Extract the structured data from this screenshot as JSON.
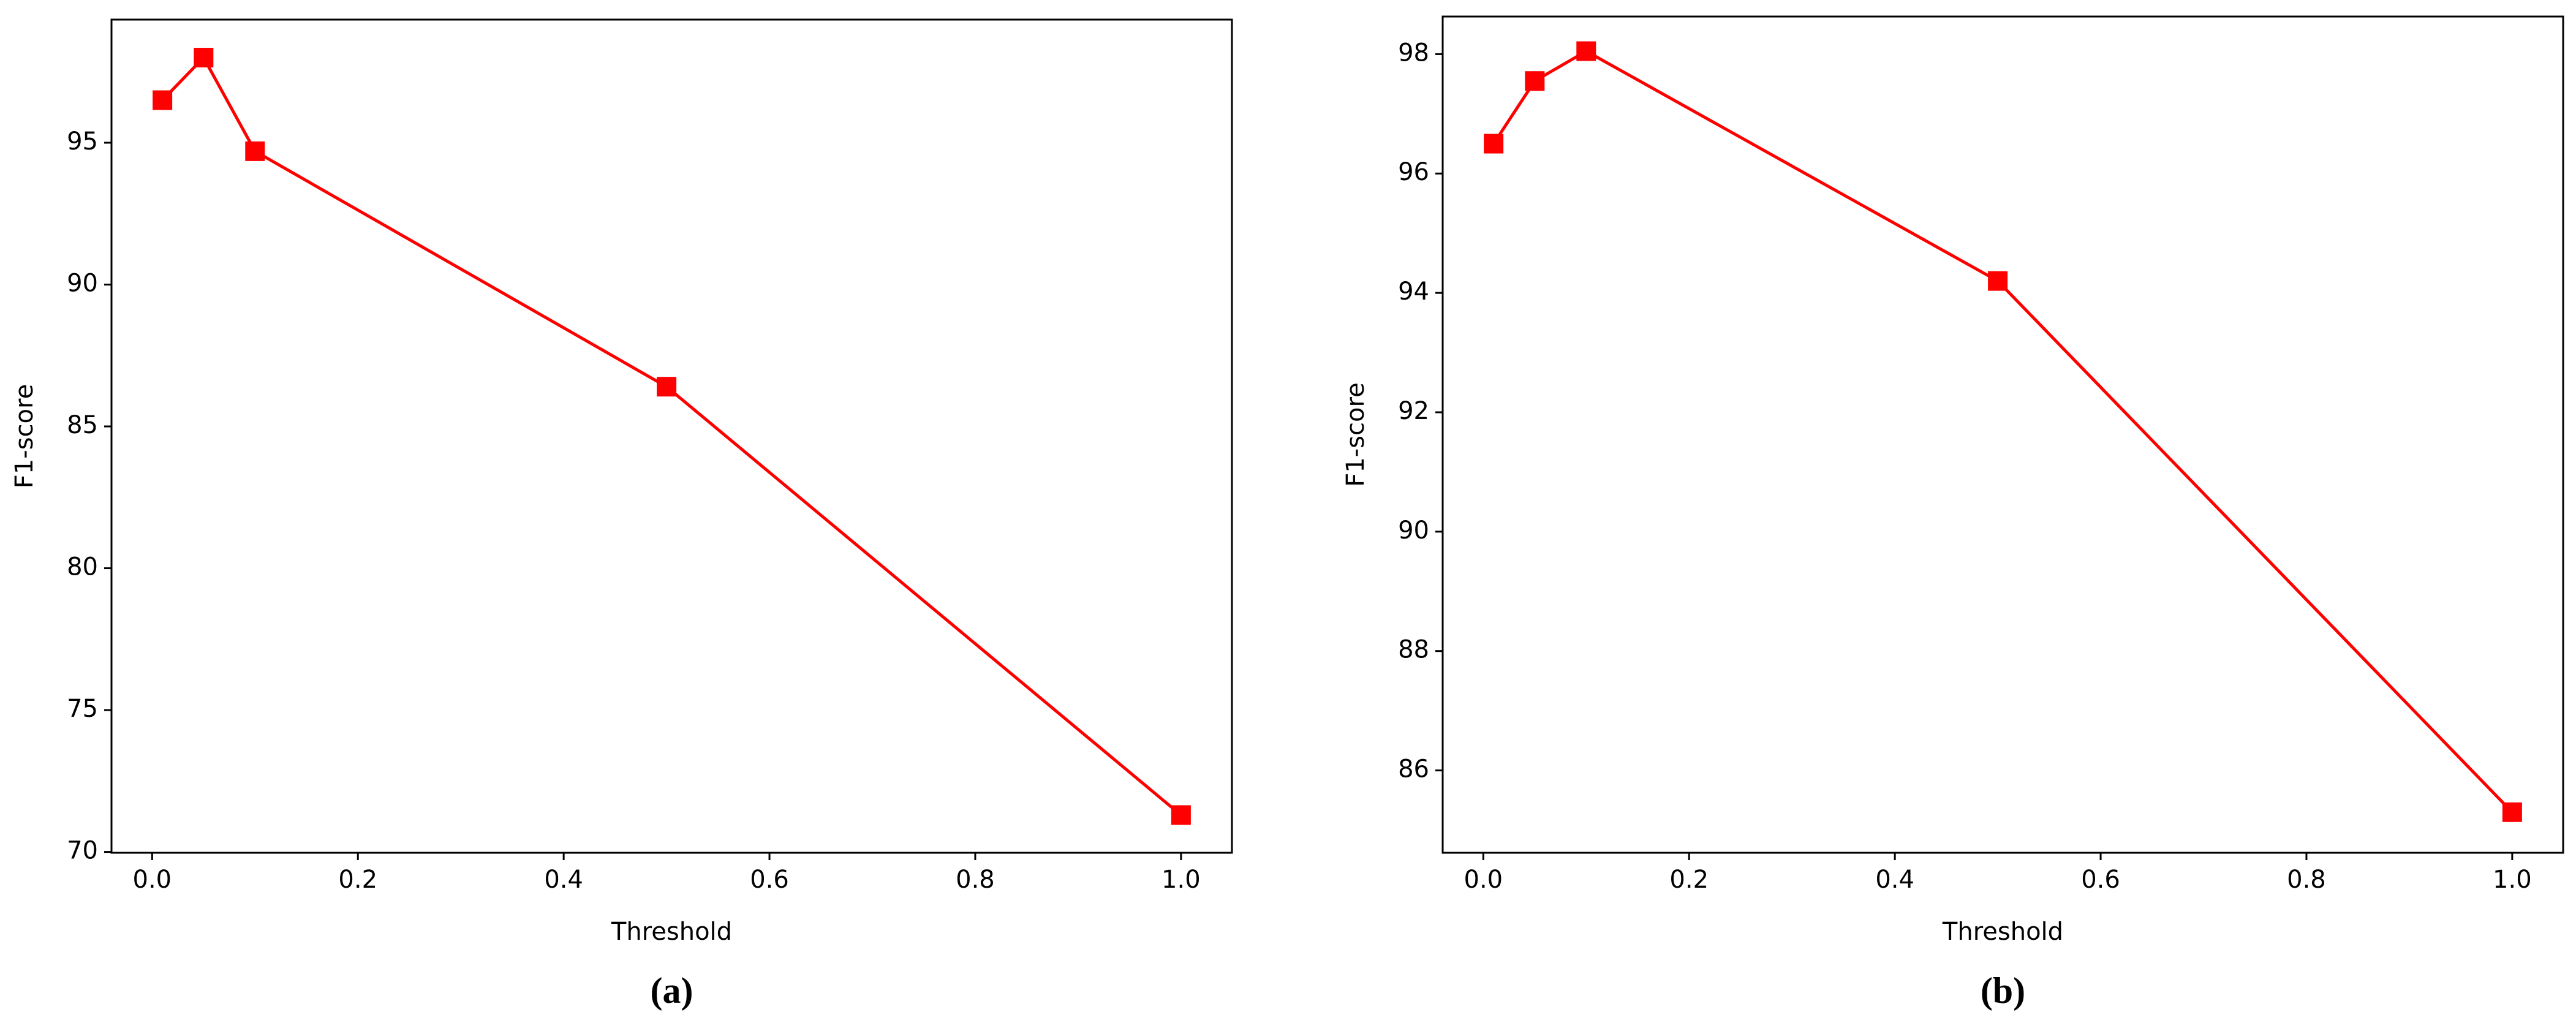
{
  "chart_data": [
    {
      "type": "line",
      "caption": "(a)",
      "xlabel": "Threshold",
      "ylabel": "F1-score",
      "x": [
        0.01,
        0.05,
        0.1,
        0.5,
        1.0
      ],
      "values": [
        96.5,
        98.0,
        94.7,
        86.4,
        71.3
      ],
      "color": "#ff0000",
      "xlim": [
        -0.0395,
        1.0495
      ],
      "xticks": [
        {
          "value": 0,
          "label": "0.0"
        },
        0.2,
        0.4,
        0.6,
        0.8,
        {
          "value": 1,
          "label": "1.0"
        }
      ],
      "ylim": [
        69.97,
        99.34
      ],
      "yticks": [
        70,
        75,
        80,
        85,
        90,
        95
      ]
    },
    {
      "type": "line",
      "caption": "(b)",
      "xlabel": "Threshold",
      "ylabel": "F1-score",
      "x": [
        0.01,
        0.05,
        0.1,
        0.5,
        1.0
      ],
      "values": [
        96.5,
        97.55,
        98.05,
        94.2,
        85.3
      ],
      "color": "#ff0000",
      "xlim": [
        -0.0395,
        1.0495
      ],
      "xticks": [
        {
          "value": 0,
          "label": "0.0"
        },
        0.2,
        0.4,
        0.6,
        0.8,
        {
          "value": 1,
          "label": "1.0"
        }
      ],
      "ylim": [
        84.62,
        98.63
      ],
      "yticks": [
        86,
        88,
        90,
        92,
        94,
        96,
        98
      ]
    }
  ]
}
